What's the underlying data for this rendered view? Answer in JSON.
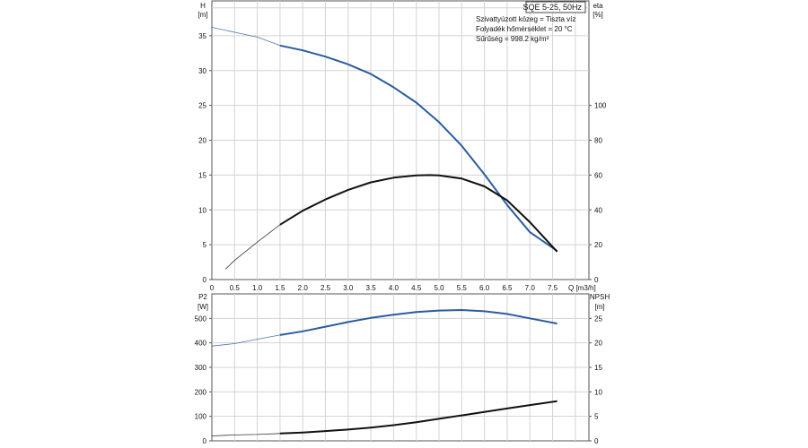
{
  "header": {
    "model": "SQE 5-25, 50Hz",
    "info_lines": [
      "Szivattyúzott közeg = Tiszta víz",
      "Folyadék hőmérséklet = 20 °C",
      "Sűrűség = 998.2 kg/m³"
    ]
  },
  "chart_data": [
    {
      "type": "line",
      "panel": "top",
      "xlabel": "Q [m3/h]",
      "ylabel_left": [
        "H",
        "[m]"
      ],
      "ylabel_right": [
        "eta",
        "[%]"
      ],
      "xlim": [
        0,
        8.3
      ],
      "ylim_left": [
        0,
        40
      ],
      "ylim_right": [
        0,
        160
      ],
      "x_ticks": [
        "0",
        "0.5",
        "1.0",
        "1.5",
        "2.0",
        "2.5",
        "3.0",
        "3.5",
        "4.0",
        "4.5",
        "5.0",
        "5.5",
        "6.0",
        "6.5",
        "7.0",
        "7.5"
      ],
      "y_ticks_left": [
        "0",
        "5",
        "10",
        "15",
        "20",
        "25",
        "30",
        "35"
      ],
      "y_ticks_right": [
        "0",
        "20",
        "40",
        "60",
        "80",
        "100"
      ],
      "grid": true,
      "series": [
        {
          "axis": "left",
          "color": "#2a5d9f",
          "thin_until": 1.5,
          "points": [
            [
              0,
              36.2
            ],
            [
              0.5,
              35.5
            ],
            [
              1.0,
              34.8
            ],
            [
              1.5,
              33.6
            ],
            [
              2.0,
              32.9
            ],
            [
              2.5,
              32.0
            ],
            [
              3.0,
              30.9
            ],
            [
              3.5,
              29.5
            ],
            [
              4.0,
              27.6
            ],
            [
              4.5,
              25.4
            ],
            [
              5.0,
              22.6
            ],
            [
              5.5,
              19.2
            ],
            [
              6.0,
              15.1
            ],
            [
              6.5,
              10.7
            ],
            [
              7.0,
              6.8
            ],
            [
              7.6,
              4.1
            ]
          ]
        },
        {
          "axis": "right",
          "color": "#111111",
          "thin_until": 1.5,
          "points": [
            [
              0.3,
              6
            ],
            [
              0.5,
              11
            ],
            [
              1.0,
              21.5
            ],
            [
              1.5,
              31.5
            ],
            [
              2.0,
              39.5
            ],
            [
              2.5,
              46
            ],
            [
              3.0,
              51.5
            ],
            [
              3.5,
              55.8
            ],
            [
              4.0,
              58.5
            ],
            [
              4.5,
              59.8
            ],
            [
              4.8,
              60
            ],
            [
              5.0,
              59.8
            ],
            [
              5.5,
              58
            ],
            [
              6.0,
              53.5
            ],
            [
              6.5,
              45.5
            ],
            [
              7.0,
              33
            ],
            [
              7.6,
              16
            ]
          ]
        }
      ]
    },
    {
      "type": "line",
      "panel": "bottom",
      "xlabel": "",
      "ylabel_left": [
        "P2",
        "[W]"
      ],
      "ylabel_right": [
        "NPSH",
        "[m]"
      ],
      "xlim": [
        0,
        8.3
      ],
      "ylim_left": [
        0,
        600
      ],
      "ylim_right": [
        0,
        30
      ],
      "y_ticks_left": [
        "0",
        "100",
        "200",
        "300",
        "400",
        "500"
      ],
      "y_ticks_right": [
        "0",
        "5",
        "10",
        "15",
        "20",
        "25"
      ],
      "grid": true,
      "series": [
        {
          "axis": "left",
          "color": "#2a5d9f",
          "thin_until": 1.5,
          "points": [
            [
              0,
              387
            ],
            [
              0.5,
              397
            ],
            [
              1.0,
              415
            ],
            [
              1.5,
              432
            ],
            [
              2.0,
              447
            ],
            [
              2.5,
              466
            ],
            [
              3.0,
              485
            ],
            [
              3.5,
              502
            ],
            [
              4.0,
              515
            ],
            [
              4.5,
              526
            ],
            [
              5.0,
              532
            ],
            [
              5.5,
              534
            ],
            [
              6.0,
              529
            ],
            [
              6.5,
              518
            ],
            [
              7.0,
              500
            ],
            [
              7.6,
              479
            ]
          ]
        },
        {
          "axis": "right",
          "color": "#111111",
          "thin_until": 1.5,
          "points": [
            [
              0,
              1.0
            ],
            [
              0.5,
              1.2
            ],
            [
              1.0,
              1.3
            ],
            [
              1.5,
              1.5
            ],
            [
              2.0,
              1.7
            ],
            [
              2.5,
              2.0
            ],
            [
              3.0,
              2.3
            ],
            [
              3.5,
              2.7
            ],
            [
              4.0,
              3.2
            ],
            [
              4.5,
              3.8
            ],
            [
              5.0,
              4.5
            ],
            [
              5.5,
              5.2
            ],
            [
              6.0,
              5.9
            ],
            [
              6.5,
              6.6
            ],
            [
              7.0,
              7.3
            ],
            [
              7.6,
              8.1
            ]
          ]
        }
      ]
    }
  ]
}
